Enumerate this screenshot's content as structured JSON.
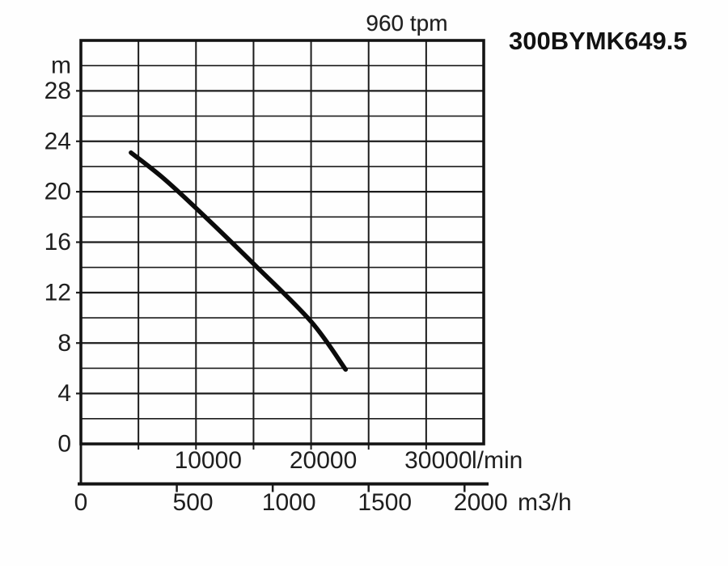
{
  "header": {
    "title": "960 tpm",
    "model": "300BYMK649.5"
  },
  "colors": {
    "background": "#fefefe",
    "ink": "#1e1e1e",
    "grid_line": "#1c1c1c",
    "border_line": "#141414",
    "curve": "#0b0b0b"
  },
  "chart_data": {
    "type": "line",
    "title": "960 tpm",
    "model": "300BYMK649.5",
    "grid": "on",
    "legend": "none",
    "x_axis": {
      "unit": "l/min",
      "min": 0,
      "max": 35000,
      "gridline_step": 5000,
      "tick_labels": [
        "10000",
        "20000",
        "30000"
      ],
      "tick_values": [
        10000,
        20000,
        30000
      ]
    },
    "x_axis_secondary": {
      "unit": "m3/h",
      "tick_labels": [
        "0",
        "500",
        "1000",
        "1500",
        "2000"
      ],
      "tick_values": [
        0,
        500,
        1000,
        1500,
        2000
      ],
      "lmin_per_unit": 16.6667
    },
    "y_axis": {
      "unit": "m",
      "min": 0,
      "max": 32,
      "gridline_step": 2,
      "tick_labels": [
        "0",
        "4",
        "8",
        "12",
        "16",
        "20",
        "24",
        "28"
      ],
      "tick_values": [
        0,
        4,
        8,
        12,
        16,
        20,
        24,
        28
      ],
      "unit_label_at_value": 30
    },
    "series": [
      {
        "name": "head-capacity-curve",
        "points_lmin_m": [
          [
            4350,
            23.1
          ],
          [
            7000,
            21.2
          ],
          [
            10000,
            18.7
          ],
          [
            15100,
            14.2
          ],
          [
            20000,
            9.7
          ],
          [
            23000,
            5.9
          ]
        ]
      }
    ]
  }
}
